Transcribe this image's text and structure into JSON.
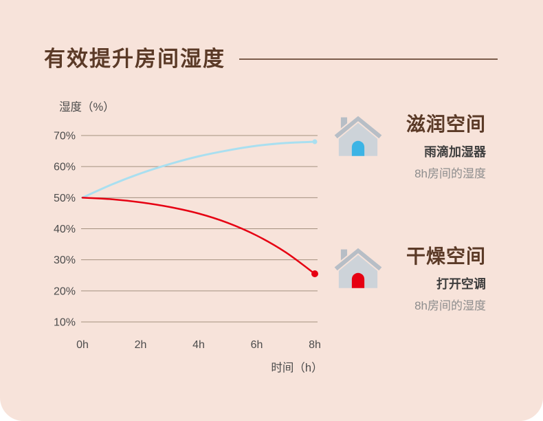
{
  "header": {
    "title": "有效提升房间湿度"
  },
  "colors": {
    "background": "#f7e3da",
    "title_text": "#5b3a27",
    "grid": "#a3907f",
    "tick_text": "#4c4c4c",
    "humid_line": "#a9dff0",
    "dry_line": "#e60012",
    "house_roof": "#b7bec6",
    "house_body": "#cdd3d9",
    "blue_door": "#3cb4e5",
    "red_door": "#e60012",
    "sub_text": "#3d3d3d",
    "muted_text": "#8d8d8d"
  },
  "chart_data": {
    "type": "line",
    "title": "",
    "ylabel": "湿度（%）",
    "xlabel": "时间（h）",
    "ylim": [
      10,
      70
    ],
    "xlim": [
      0,
      8
    ],
    "grid": true,
    "legend_position": "none",
    "y_ticks": [
      70,
      60,
      50,
      40,
      30,
      20,
      10
    ],
    "y_tick_suffix": "%",
    "x_ticks": [
      "0h",
      "2h",
      "4h",
      "6h",
      "8h"
    ],
    "x_tick_values": [
      0,
      2,
      4,
      6,
      8
    ],
    "series": [
      {
        "name": "雨滴加湿器（8h房间的湿度）",
        "color": "#a9dff0",
        "stroke_width": 3,
        "end_dot": true,
        "dot_radius": 3.5,
        "x": [
          0,
          1,
          2,
          3,
          4,
          5,
          6,
          7,
          8
        ],
        "values": [
          50,
          54.2,
          57.8,
          60.8,
          63.3,
          65.2,
          66.7,
          67.6,
          68
        ]
      },
      {
        "name": "打开空调（8h房间的湿度）",
        "color": "#e60012",
        "stroke_width": 2.5,
        "end_dot": true,
        "dot_radius": 5,
        "x": [
          0,
          1,
          2,
          3,
          4,
          5,
          6,
          7,
          8
        ],
        "values": [
          50,
          49.5,
          48.5,
          47,
          44.9,
          41.9,
          37.8,
          32.4,
          25.5
        ]
      }
    ]
  },
  "annotations": [
    {
      "title": "滋润空间",
      "line1": "雨滴加湿器",
      "line2": "8h房间的湿度",
      "door_color": "#3cb4e5",
      "icon": "house-icon"
    },
    {
      "title": "干燥空间",
      "line1": "打开空调",
      "line2": "8h房间的湿度",
      "door_color": "#e60012",
      "icon": "house-icon"
    }
  ]
}
